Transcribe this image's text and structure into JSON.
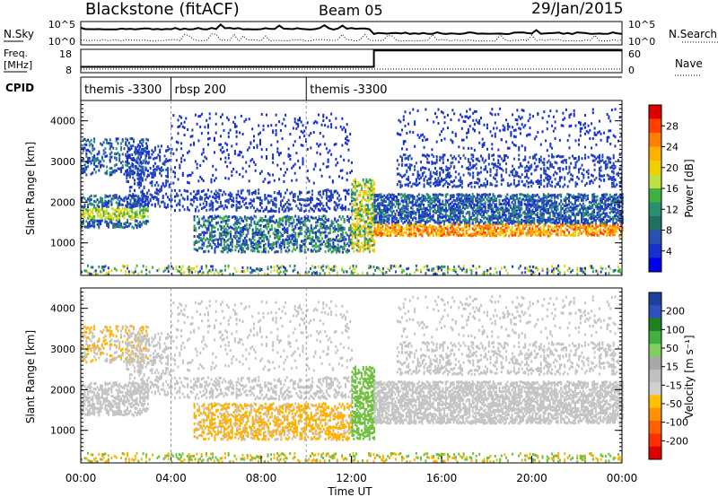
{
  "header": {
    "station": "Blackstone (fitACF)",
    "beam": "Beam 05",
    "date": "29/Jan/2015"
  },
  "panels": {
    "nsky_label": "N.Sky",
    "nsearch_label": "N.Search",
    "freq_label_1": "Freq.",
    "freq_label_2": "[MHz]",
    "nave_label": "Nave",
    "cpid_label": "CPID",
    "nsky_ticks": [
      "10^5",
      "10^0"
    ],
    "nsearch_ticks": [
      "10^5",
      "10^0"
    ],
    "freq_ticks": [
      "18",
      "8"
    ],
    "nave_ticks": [
      "60",
      "0"
    ],
    "freq_values": [
      {
        "t": 0,
        "f": 10.5
      },
      {
        "t": 13,
        "f": 10.5
      },
      {
        "t": 13,
        "f": 17.5
      },
      {
        "t": 24,
        "f": 17.5
      }
    ],
    "cpid_segments": [
      {
        "start": 0,
        "label": "themis -3300"
      },
      {
        "start": 4,
        "label": "rbsp 200"
      },
      {
        "start": 10,
        "label": "themis -3300"
      }
    ]
  },
  "chart_data": [
    {
      "type": "heatmap",
      "ylabel": "Slant Range [km]",
      "xlabel": "",
      "xlim": [
        0,
        24
      ],
      "ylim": [
        200,
        4500
      ],
      "yticks": [
        "1000",
        "2000",
        "3000",
        "4000"
      ],
      "colorbar": {
        "label": "Power [dB]",
        "ticks": [
          "28",
          "24",
          "20",
          "16",
          "12",
          "8",
          "4"
        ],
        "colors": [
          "#e00000",
          "#ff4000",
          "#ff8000",
          "#ffb000",
          "#f0d000",
          "#c0e040",
          "#40b040",
          "#2a9070",
          "#207060",
          "#2a50b0",
          "#1830d0",
          "#0000f0"
        ]
      }
    },
    {
      "type": "heatmap",
      "ylabel": "Slant Range [km]",
      "xlabel": "Time UT",
      "xlim": [
        0,
        24
      ],
      "ylim": [
        200,
        4500
      ],
      "yticks": [
        "1000",
        "2000",
        "3000",
        "4000"
      ],
      "xticks": [
        "00:00",
        "04:00",
        "08:00",
        "12:00",
        "16:00",
        "20:00",
        "00:00"
      ],
      "colorbar": {
        "label": "Velocity [m s⁻¹]",
        "ticks": [
          "200",
          "100",
          "50",
          "15",
          "-15",
          "-50",
          "-100",
          "-200"
        ],
        "colors": [
          "#2040a0",
          "#3050c0",
          "#208020",
          "#40b040",
          "#80d060",
          "#a8a8a8",
          "#c0c0c0",
          "#d0d0d0",
          "#ffc000",
          "#ff9000",
          "#ff6000",
          "#ff3000",
          "#e00000"
        ]
      }
    }
  ],
  "scatter": {
    "power_palette": [
      "#1830d0",
      "#2a50b0",
      "#2a9070",
      "#40b040",
      "#c0e040",
      "#f0d000",
      "#ffb000",
      "#ff8000",
      "#ff4000",
      "#e00000"
    ],
    "vel_gray": "#c4c4c4",
    "vel_orange": "#ffb000",
    "vel_green": "#70c040"
  }
}
